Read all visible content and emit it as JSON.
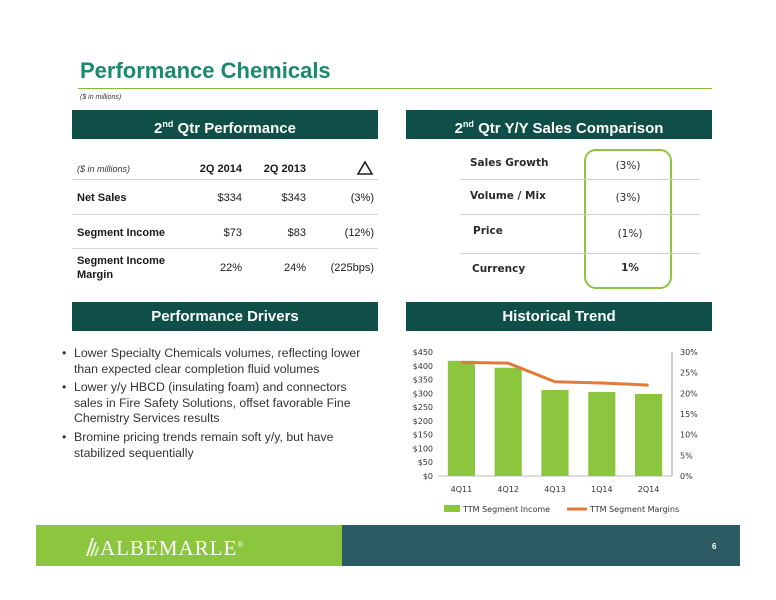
{
  "title": "Performance Chemicals",
  "subtitle": "($ in millions)",
  "qtr_performance": {
    "header_main": "2",
    "header_sup": "nd",
    "header_rest": " Qtr Performance",
    "col_note": "($ in millions)",
    "col_2014": "2Q 2014",
    "col_2013": "2Q 2013",
    "rows": [
      {
        "label": "Net Sales",
        "v2014": "$334",
        "v2013": "$343",
        "change": "(3%)"
      },
      {
        "label": "Segment Income",
        "v2014": "$73",
        "v2013": "$83",
        "change": "(12%)"
      },
      {
        "label_line1": "Segment Income",
        "label_line2": "Margin",
        "v2014": "22%",
        "v2013": "24%",
        "change": "(225bps)"
      }
    ]
  },
  "sales_comparison": {
    "header_main": "2",
    "header_sup": "nd",
    "header_rest": " Qtr Y/Y Sales Comparison",
    "rows": [
      {
        "label": "Sales Growth",
        "value": "(3%)"
      },
      {
        "label": "Volume / Mix",
        "value": "(3%)"
      },
      {
        "label": "Price",
        "value": "(1%)"
      },
      {
        "label": "Currency",
        "value": "1%"
      }
    ]
  },
  "drivers": {
    "header": "Performance Drivers",
    "bullets": [
      "Lower Specialty Chemicals volumes, reflecting lower than expected clear completion fluid volumes",
      "Lower y/y HBCD (insulating foam) and connectors sales in Fire Safety Solutions, offset favorable Fine Chemistry Services results",
      "Bromine pricing trends remain soft y/y, but have stabilized sequentially"
    ]
  },
  "trend_header": "Historical Trend",
  "chart_data": {
    "type": "bar",
    "categories": [
      "4Q11",
      "4Q12",
      "4Q13",
      "1Q14",
      "2Q14"
    ],
    "series": [
      {
        "name": "TTM Segment Income",
        "type": "bar",
        "axis": "left",
        "color": "#8cc63f",
        "values": [
          418,
          393,
          312,
          305,
          298
        ]
      },
      {
        "name": "TTM Segment Margins",
        "type": "line",
        "axis": "right",
        "color": "#e07b39",
        "values": [
          0.275,
          0.273,
          0.228,
          0.225,
          0.22
        ]
      }
    ],
    "y_left": {
      "min": 0,
      "max": 450,
      "step": 50,
      "ticks": [
        "$0",
        "$50",
        "$100",
        "$150",
        "$200",
        "$250",
        "$300",
        "$350",
        "$400",
        "$450"
      ]
    },
    "y_right": {
      "min": 0,
      "max": 0.3,
      "step": 0.05,
      "ticks": [
        "0%",
        "5%",
        "10%",
        "15%",
        "20%",
        "25%",
        "30%"
      ]
    },
    "legend_position": "bottom"
  },
  "footer": {
    "logo_text": "ALBEMARLE",
    "logo_mark": "®",
    "page": "6"
  }
}
